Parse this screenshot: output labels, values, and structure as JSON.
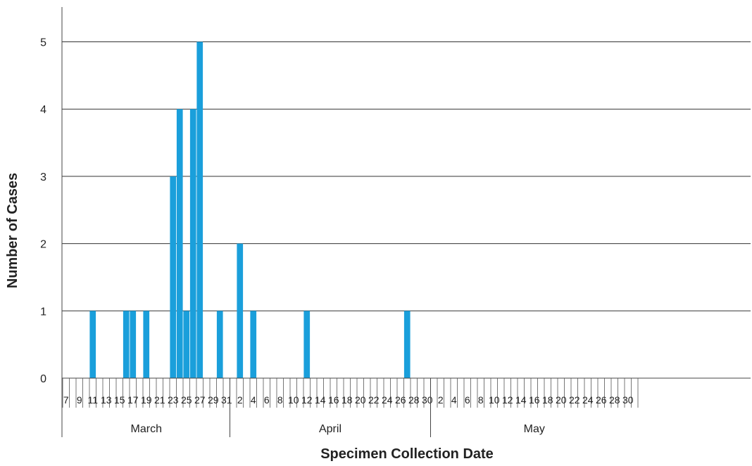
{
  "chart_data": {
    "type": "bar",
    "title": "",
    "xlabel": "Specimen Collection Date",
    "ylabel": "Number of Cases",
    "ylim": [
      0,
      5.5
    ],
    "yticks": [
      0,
      1,
      2,
      3,
      4,
      5
    ],
    "grid": "horizontal",
    "bar_color": "#1a9fdb",
    "x_start": "03-07",
    "x_end": "05-31",
    "months": [
      {
        "name": "March",
        "from": "03-07",
        "to": "03-31"
      },
      {
        "name": "April",
        "from": "04-01",
        "to": "04-30"
      },
      {
        "name": "May",
        "from": "05-01",
        "to": "05-31"
      }
    ],
    "x_tick_labels": [
      "7",
      "9",
      "11",
      "13",
      "15",
      "17",
      "19",
      "21",
      "23",
      "25",
      "27",
      "29",
      "31",
      "2",
      "4",
      "6",
      "8",
      "10",
      "12",
      "14",
      "16",
      "18",
      "20",
      "22",
      "24",
      "26",
      "28",
      "30",
      "2",
      "4",
      "6",
      "8",
      "10",
      "12",
      "14",
      "16",
      "18",
      "20",
      "22",
      "24",
      "26",
      "28",
      "30"
    ],
    "points": [
      {
        "date": "03-11",
        "value": 1
      },
      {
        "date": "03-16",
        "value": 1
      },
      {
        "date": "03-17",
        "value": 1
      },
      {
        "date": "03-19",
        "value": 1
      },
      {
        "date": "03-23",
        "value": 3
      },
      {
        "date": "03-24",
        "value": 4
      },
      {
        "date": "03-25",
        "value": 1
      },
      {
        "date": "03-26",
        "value": 4
      },
      {
        "date": "03-27",
        "value": 5
      },
      {
        "date": "03-30",
        "value": 1
      },
      {
        "date": "04-02",
        "value": 2
      },
      {
        "date": "04-04",
        "value": 1
      },
      {
        "date": "04-12",
        "value": 1
      },
      {
        "date": "04-27",
        "value": 1
      }
    ]
  }
}
